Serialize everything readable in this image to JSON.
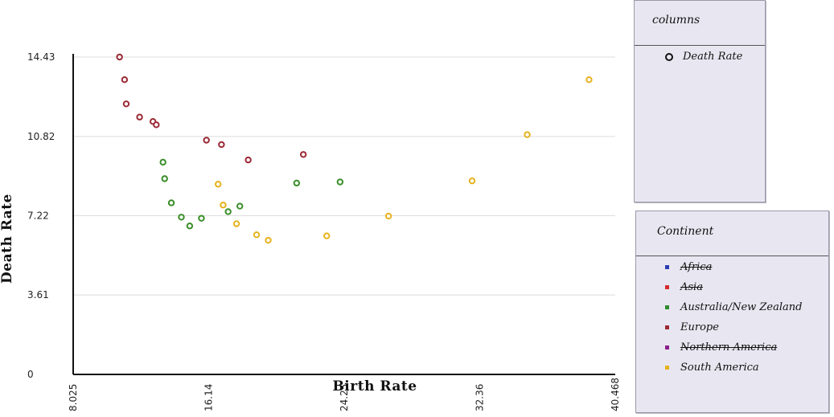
{
  "chart_data": {
    "type": "scatter",
    "xlabel": "Birth Rate",
    "ylabel": "Death Rate",
    "xlim": [
      8.025,
      40.468
    ],
    "ylim": [
      0,
      14.43
    ],
    "xticks": [
      "8.025",
      "16.14",
      "24.25",
      "32.36",
      "40.468"
    ],
    "yticks": [
      "0",
      "3.61",
      "7.22",
      "10.82",
      "14.43"
    ],
    "grid": true,
    "points": [
      {
        "x": 10.8,
        "y": 14.43,
        "continent": "Europe"
      },
      {
        "x": 11.1,
        "y": 13.4,
        "continent": "Europe"
      },
      {
        "x": 11.2,
        "y": 12.3,
        "continent": "Europe"
      },
      {
        "x": 12.0,
        "y": 11.7,
        "continent": "Europe"
      },
      {
        "x": 12.8,
        "y": 11.5,
        "continent": "Europe"
      },
      {
        "x": 13.0,
        "y": 11.35,
        "continent": "Europe"
      },
      {
        "x": 16.0,
        "y": 10.65,
        "continent": "Europe"
      },
      {
        "x": 16.9,
        "y": 10.45,
        "continent": "Europe"
      },
      {
        "x": 18.5,
        "y": 9.75,
        "continent": "Europe"
      },
      {
        "x": 21.8,
        "y": 10.0,
        "continent": "Europe"
      },
      {
        "x": 13.4,
        "y": 9.65,
        "continent": "Australia/New Zealand"
      },
      {
        "x": 13.5,
        "y": 8.9,
        "continent": "Australia/New Zealand"
      },
      {
        "x": 13.9,
        "y": 7.8,
        "continent": "Australia/New Zealand"
      },
      {
        "x": 14.5,
        "y": 7.15,
        "continent": "Australia/New Zealand"
      },
      {
        "x": 15.0,
        "y": 6.75,
        "continent": "Australia/New Zealand"
      },
      {
        "x": 15.7,
        "y": 7.1,
        "continent": "Australia/New Zealand"
      },
      {
        "x": 17.3,
        "y": 7.4,
        "continent": "Australia/New Zealand"
      },
      {
        "x": 18.0,
        "y": 7.65,
        "continent": "Australia/New Zealand"
      },
      {
        "x": 21.4,
        "y": 8.7,
        "continent": "Australia/New Zealand"
      },
      {
        "x": 24.0,
        "y": 8.75,
        "continent": "Australia/New Zealand"
      },
      {
        "x": 16.7,
        "y": 8.65,
        "continent": "South America"
      },
      {
        "x": 17.0,
        "y": 7.7,
        "continent": "South America"
      },
      {
        "x": 17.8,
        "y": 6.85,
        "continent": "South America"
      },
      {
        "x": 19.0,
        "y": 6.35,
        "continent": "South America"
      },
      {
        "x": 19.7,
        "y": 6.1,
        "continent": "South America"
      },
      {
        "x": 23.2,
        "y": 6.3,
        "continent": "South America"
      },
      {
        "x": 26.9,
        "y": 7.2,
        "continent": "South America"
      },
      {
        "x": 31.9,
        "y": 8.8,
        "continent": "South America"
      },
      {
        "x": 35.2,
        "y": 10.9,
        "continent": "South America"
      },
      {
        "x": 38.9,
        "y": 13.4,
        "continent": "South America"
      }
    ],
    "continent_colors": {
      "Europe": "#9b2a35",
      "Australia/New Zealand": "#3b8e2a",
      "South America": "#e6b31e"
    }
  },
  "columns_legend": {
    "title": "columns",
    "items": [
      {
        "label": "Death Rate",
        "icon": "hollow-circle-icon"
      }
    ]
  },
  "continent_legend": {
    "title": "Continent",
    "items": [
      {
        "label": "Africa",
        "color": "#2b3bb0",
        "hidden": true
      },
      {
        "label": "Asia",
        "color": "#d42a2a",
        "hidden": true
      },
      {
        "label": "Australia/New Zealand",
        "color": "#2e8b2e",
        "hidden": false
      },
      {
        "label": "Europe",
        "color": "#9b2a35",
        "hidden": false
      },
      {
        "label": "Northern America",
        "color": "#8a1f8a",
        "hidden": true
      },
      {
        "label": "South America",
        "color": "#e6b31e",
        "hidden": false
      }
    ]
  }
}
